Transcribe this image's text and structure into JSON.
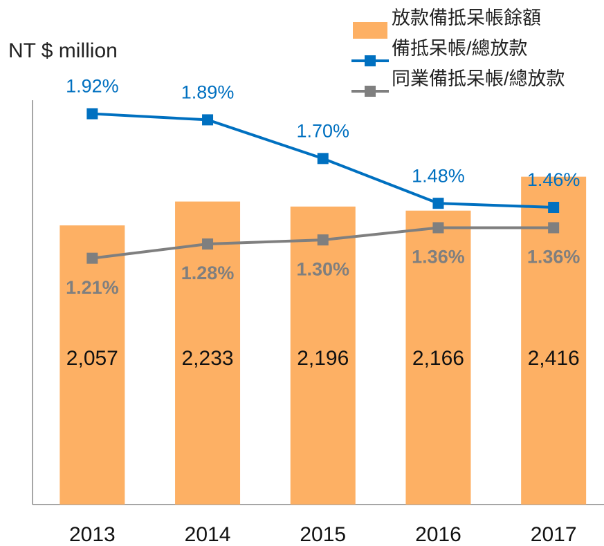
{
  "chart_data": {
    "type": "bar_line",
    "y_label": "NT $ million",
    "categories": [
      "2013",
      "2014",
      "2015",
      "2016",
      "2017"
    ],
    "ylim": [
      0,
      3000
    ],
    "y2lim": [
      0,
      2
    ],
    "legend": "top-right",
    "series": [
      {
        "name": "放款備抵呆帳餘額",
        "type": "bar",
        "color": "#fdb064",
        "values": [
          2057,
          2233,
          2196,
          2166,
          2416
        ],
        "value_labels": [
          "2,057",
          "2,233",
          "2,196",
          "2,166",
          "2,416"
        ]
      },
      {
        "name": "備抵呆帳/總放款",
        "type": "line",
        "axis": "y2",
        "color": "#0070c0",
        "values": [
          1.92,
          1.89,
          1.7,
          1.48,
          1.46
        ],
        "value_labels": [
          "1.92%",
          "1.89%",
          "1.70%",
          "1.48%",
          "1.46%"
        ]
      },
      {
        "name": "同業備抵呆帳/總放款",
        "type": "line",
        "axis": "y2",
        "color": "#7f7f7f",
        "values": [
          1.21,
          1.28,
          1.3,
          1.36,
          1.36
        ],
        "value_labels": [
          "1.21%",
          "1.28%",
          "1.30%",
          "1.36%",
          "1.36%"
        ]
      }
    ]
  }
}
